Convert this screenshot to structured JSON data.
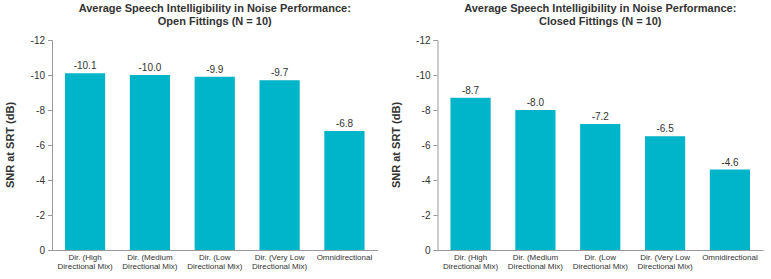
{
  "chart_data": [
    {
      "type": "bar",
      "title": "Average Speech Intelligibility in Noise Performance: Open Fittings (N = 10)",
      "y_label": "SNR at SRT (dB)",
      "categories": [
        "Dir. (High Directional Mix)",
        "Dir. (Medium Directional Mix)",
        "Dir. (Low Directional Mix)",
        "Dir. (Very Low Directional Mix)",
        "Omnidirectional"
      ],
      "values": [
        -10.1,
        -10.0,
        -9.9,
        -9.7,
        -6.8
      ],
      "value_labels": [
        "-10.1",
        "-10.0",
        "-9.9",
        "-9.7",
        "-6.8"
      ],
      "color": "#00b4c9",
      "ylim": [
        0,
        -12
      ],
      "yticks": [
        -12,
        -10,
        -8,
        -6,
        -4,
        -2,
        0
      ],
      "grid": false,
      "data_labels": true
    },
    {
      "type": "bar",
      "title": "Average Speech Intelligibility in Noise Performance: Closed Fittings (N = 10)",
      "y_label": "SNR at SRT (dB)",
      "categories": [
        "Dir. (High Directional Mix)",
        "Dir. (Medium Directional Mix)",
        "Dir. (Low Directional Mix)",
        "Dir. (Very Low Directional Mix)",
        "Omnidirectional"
      ],
      "values": [
        -8.7,
        -8.0,
        -7.2,
        -6.5,
        -4.6
      ],
      "value_labels": [
        "-8.7",
        "-8.0",
        "-7.2",
        "-6.5",
        "-4.6"
      ],
      "color": "#00b4c9",
      "ylim": [
        0,
        -12
      ],
      "yticks": [
        -12,
        -10,
        -8,
        -6,
        -4,
        -2,
        0
      ],
      "grid": false,
      "data_labels": true
    }
  ]
}
